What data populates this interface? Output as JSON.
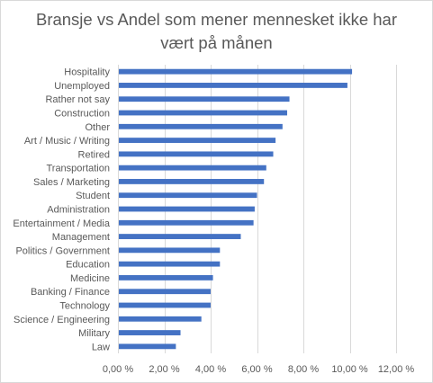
{
  "chart_data": {
    "type": "bar",
    "orientation": "horizontal",
    "title_lines": [
      "Bransje vs Andel som mener mennesket ikke har",
      "vært på månen"
    ],
    "xlabel": "",
    "ylabel": "",
    "xlim": [
      0,
      12
    ],
    "x_ticks": [
      0,
      2,
      4,
      6,
      8,
      10,
      12
    ],
    "x_tick_labels": [
      "0,00 %",
      "2,00 %",
      "4,00 %",
      "6,00 %",
      "8,00 %",
      "10,00 %",
      "12,00 %"
    ],
    "grid": "vertical",
    "bar_color": "#4472c4",
    "categories": [
      "Hospitality",
      "Unemployed",
      "Rather not say",
      "Construction",
      "Other",
      "Art / Music / Writing",
      "Retired",
      "Transportation",
      "Sales / Marketing",
      "Student",
      "Administration",
      "Entertainment / Media",
      "Management",
      "Politics / Government",
      "Education",
      "Medicine",
      "Banking / Finance",
      "Technology",
      "Science / Engineering",
      "Military",
      "Law"
    ],
    "values": [
      10.1,
      9.9,
      7.4,
      7.3,
      7.1,
      6.8,
      6.7,
      6.4,
      6.3,
      6.0,
      5.9,
      5.85,
      5.3,
      4.4,
      4.4,
      4.1,
      4.0,
      4.0,
      3.6,
      2.7,
      2.5
    ]
  }
}
